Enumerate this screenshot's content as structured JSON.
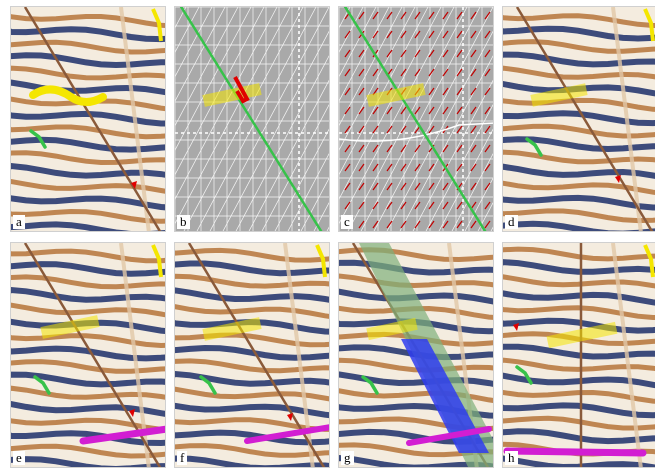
{
  "figure": {
    "panels": [
      {
        "label": "a",
        "kind": "seismic"
      },
      {
        "label": "b",
        "kind": "mesh"
      },
      {
        "label": "c",
        "kind": "vectors"
      },
      {
        "label": "d",
        "kind": "seismic"
      },
      {
        "label": "e",
        "kind": "seismic"
      },
      {
        "label": "f",
        "kind": "seismic"
      },
      {
        "label": "g",
        "kind": "seismic"
      },
      {
        "label": "h",
        "kind": "seismic"
      }
    ],
    "colors": {
      "seismic_light": "#f4ecdf",
      "seismic_brown": "#b5743a",
      "seismic_dark": "#1c2f6a",
      "mesh_bg": "#a9a9a9",
      "fault_green": "#37c24a",
      "fault_brown": "#8a5a3a",
      "horizon_yellow": "#f4e600",
      "horizon_magenta": "#d21ed2",
      "arrow_red": "#e00000",
      "surface_blue": "#2f3df0",
      "surface_green": "#7fb07a"
    }
  }
}
